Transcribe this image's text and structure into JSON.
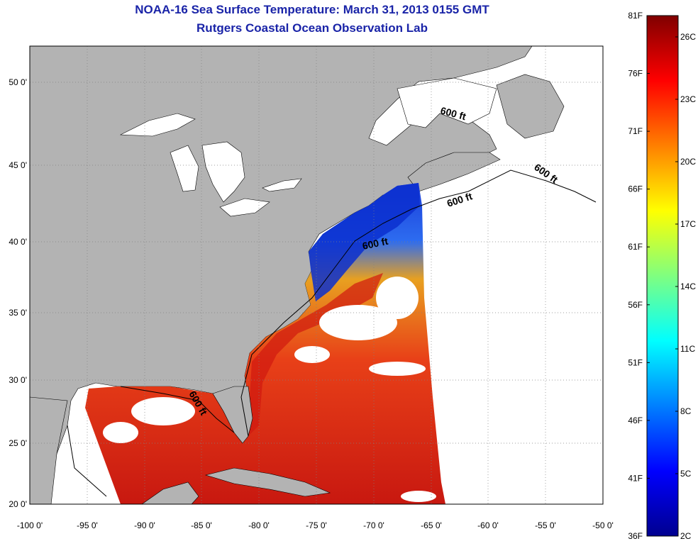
{
  "title": "NOAA-16 Sea Surface Temperature:  March 31, 2013 0155 GMT",
  "subtitle": "Rutgers Coastal Ocean Observation Lab",
  "x_ticks": [
    "-100 0'",
    "-95 0'",
    "-90 0'",
    "-85 0'",
    "-80 0'",
    "-75 0'",
    "-70 0'",
    "-65 0'",
    "-60 0'",
    "-55 0'",
    "-50 0'"
  ],
  "y_ticks": [
    "50 0'",
    "45 0'",
    "40 0'",
    "35 0'",
    "30 0'",
    "25 0'",
    "20 0'"
  ],
  "isobath_label": "600 ft",
  "colorbar": {
    "fahrenheit": [
      "81F",
      "76F",
      "71F",
      "66F",
      "61F",
      "56F",
      "51F",
      "46F",
      "41F",
      "36F"
    ],
    "celsius": [
      "26C",
      "23C",
      "20C",
      "17C",
      "14C",
      "11C",
      "8C",
      "5C",
      "2C"
    ]
  },
  "colors": {
    "title": "#1a24a8",
    "land": "#b3b3b3",
    "no_data": "#ffffff"
  }
}
